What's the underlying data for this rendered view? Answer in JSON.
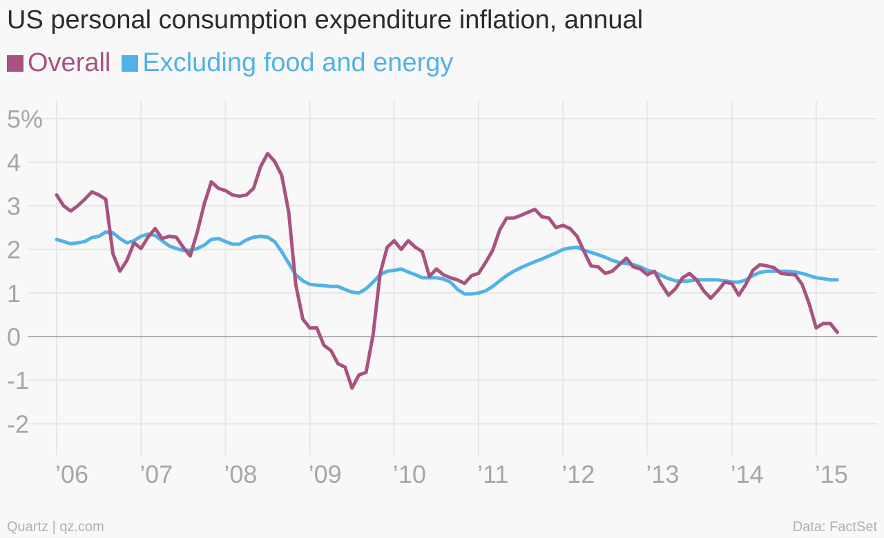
{
  "chart_data": {
    "type": "line",
    "title": "US personal consumption expenditure inflation, annual",
    "ylim": [
      -2.5,
      5.4
    ],
    "yticks": [
      {
        "value": 5,
        "label": "5%"
      },
      {
        "value": 4,
        "label": "4"
      },
      {
        "value": 3,
        "label": "3"
      },
      {
        "value": 2,
        "label": "2"
      },
      {
        "value": 1,
        "label": "1"
      },
      {
        "value": 0,
        "label": "0"
      },
      {
        "value": -1,
        "label": "-1"
      },
      {
        "value": -2,
        "label": "-2"
      }
    ],
    "xlim": [
      2005.8,
      2015.6
    ],
    "xticks": [
      {
        "value": 2006,
        "label": "’06"
      },
      {
        "value": 2007,
        "label": "’07"
      },
      {
        "value": 2008,
        "label": "’08"
      },
      {
        "value": 2009,
        "label": "’09"
      },
      {
        "value": 2010,
        "label": "’10"
      },
      {
        "value": 2011,
        "label": "’11"
      },
      {
        "value": 2012,
        "label": "’12"
      },
      {
        "value": 2013,
        "label": "’13"
      },
      {
        "value": 2014,
        "label": "’14"
      },
      {
        "value": 2015,
        "label": "’15"
      }
    ],
    "grid": true,
    "legend_position": "top-left",
    "series": [
      {
        "name": "Overall",
        "color": "#a8537f",
        "x": [
          2006.0,
          2006.083,
          2006.167,
          2006.25,
          2006.333,
          2006.417,
          2006.5,
          2006.583,
          2006.667,
          2006.75,
          2006.833,
          2006.917,
          2007.0,
          2007.083,
          2007.167,
          2007.25,
          2007.333,
          2007.417,
          2007.5,
          2007.583,
          2007.667,
          2007.75,
          2007.833,
          2007.917,
          2008.0,
          2008.083,
          2008.167,
          2008.25,
          2008.333,
          2008.417,
          2008.5,
          2008.583,
          2008.667,
          2008.75,
          2008.833,
          2008.917,
          2009.0,
          2009.083,
          2009.167,
          2009.25,
          2009.333,
          2009.417,
          2009.5,
          2009.583,
          2009.667,
          2009.75,
          2009.833,
          2009.917,
          2010.0,
          2010.083,
          2010.167,
          2010.25,
          2010.333,
          2010.417,
          2010.5,
          2010.583,
          2010.667,
          2010.75,
          2010.833,
          2010.917,
          2011.0,
          2011.083,
          2011.167,
          2011.25,
          2011.333,
          2011.417,
          2011.5,
          2011.583,
          2011.667,
          2011.75,
          2011.833,
          2011.917,
          2012.0,
          2012.083,
          2012.167,
          2012.25,
          2012.333,
          2012.417,
          2012.5,
          2012.583,
          2012.667,
          2012.75,
          2012.833,
          2012.917,
          2013.0,
          2013.083,
          2013.167,
          2013.25,
          2013.333,
          2013.417,
          2013.5,
          2013.583,
          2013.667,
          2013.75,
          2013.833,
          2013.917,
          2014.0,
          2014.083,
          2014.167,
          2014.25,
          2014.333,
          2014.417,
          2014.5,
          2014.583,
          2014.667,
          2014.75,
          2014.833,
          2014.917,
          2015.0,
          2015.083,
          2015.167,
          2015.25
        ],
        "values": [
          3.25,
          3.0,
          2.88,
          3.0,
          3.15,
          3.32,
          3.25,
          3.15,
          1.9,
          1.5,
          1.75,
          2.15,
          2.02,
          2.28,
          2.48,
          2.25,
          2.3,
          2.28,
          2.05,
          1.85,
          2.4,
          3.05,
          3.55,
          3.4,
          3.35,
          3.25,
          3.22,
          3.25,
          3.4,
          3.9,
          4.2,
          4.02,
          3.7,
          2.85,
          1.2,
          0.4,
          0.2,
          0.2,
          -0.2,
          -0.32,
          -0.62,
          -0.7,
          -1.18,
          -0.88,
          -0.82,
          0.05,
          1.45,
          2.05,
          2.2,
          2.0,
          2.2,
          2.05,
          1.95,
          1.38,
          1.55,
          1.42,
          1.35,
          1.3,
          1.22,
          1.4,
          1.45,
          1.7,
          1.98,
          2.45,
          2.72,
          2.72,
          2.78,
          2.85,
          2.92,
          2.75,
          2.72,
          2.5,
          2.55,
          2.48,
          2.3,
          1.95,
          1.62,
          1.6,
          1.45,
          1.5,
          1.65,
          1.8,
          1.6,
          1.55,
          1.42,
          1.5,
          1.2,
          0.95,
          1.1,
          1.35,
          1.45,
          1.3,
          1.05,
          0.88,
          1.05,
          1.25,
          1.22,
          0.95,
          1.2,
          1.52,
          1.65,
          1.62,
          1.58,
          1.45,
          1.43,
          1.42,
          1.2,
          0.75,
          0.2,
          0.3,
          0.3,
          0.1
        ]
      },
      {
        "name": "Excluding food and energy",
        "color": "#51b2e5",
        "x": [
          2006.0,
          2006.083,
          2006.167,
          2006.25,
          2006.333,
          2006.417,
          2006.5,
          2006.583,
          2006.667,
          2006.75,
          2006.833,
          2006.917,
          2007.0,
          2007.083,
          2007.167,
          2007.25,
          2007.333,
          2007.417,
          2007.5,
          2007.583,
          2007.667,
          2007.75,
          2007.833,
          2007.917,
          2008.0,
          2008.083,
          2008.167,
          2008.25,
          2008.333,
          2008.417,
          2008.5,
          2008.583,
          2008.667,
          2008.75,
          2008.833,
          2008.917,
          2009.0,
          2009.083,
          2009.167,
          2009.25,
          2009.333,
          2009.417,
          2009.5,
          2009.583,
          2009.667,
          2009.75,
          2009.833,
          2009.917,
          2010.0,
          2010.083,
          2010.167,
          2010.25,
          2010.333,
          2010.417,
          2010.5,
          2010.583,
          2010.667,
          2010.75,
          2010.833,
          2010.917,
          2011.0,
          2011.083,
          2011.167,
          2011.25,
          2011.333,
          2011.417,
          2011.5,
          2011.583,
          2011.667,
          2011.75,
          2011.833,
          2011.917,
          2012.0,
          2012.083,
          2012.167,
          2012.25,
          2012.333,
          2012.417,
          2012.5,
          2012.583,
          2012.667,
          2012.75,
          2012.833,
          2012.917,
          2013.0,
          2013.083,
          2013.167,
          2013.25,
          2013.333,
          2013.417,
          2013.5,
          2013.583,
          2013.667,
          2013.75,
          2013.833,
          2013.917,
          2014.0,
          2014.083,
          2014.167,
          2014.25,
          2014.333,
          2014.417,
          2014.5,
          2014.583,
          2014.667,
          2014.75,
          2014.833,
          2014.917,
          2015.0,
          2015.083,
          2015.167,
          2015.25
        ],
        "values": [
          2.23,
          2.18,
          2.13,
          2.15,
          2.18,
          2.27,
          2.3,
          2.4,
          2.38,
          2.25,
          2.15,
          2.2,
          2.3,
          2.35,
          2.32,
          2.2,
          2.08,
          2.02,
          1.98,
          1.98,
          2.02,
          2.1,
          2.23,
          2.25,
          2.18,
          2.12,
          2.12,
          2.22,
          2.28,
          2.3,
          2.28,
          2.18,
          1.95,
          1.68,
          1.42,
          1.28,
          1.2,
          1.18,
          1.17,
          1.15,
          1.15,
          1.08,
          1.02,
          1.0,
          1.1,
          1.25,
          1.42,
          1.5,
          1.52,
          1.55,
          1.48,
          1.42,
          1.35,
          1.35,
          1.35,
          1.32,
          1.25,
          1.08,
          0.98,
          0.98,
          1.0,
          1.05,
          1.15,
          1.28,
          1.4,
          1.5,
          1.58,
          1.65,
          1.72,
          1.78,
          1.85,
          1.92,
          2.0,
          2.03,
          2.05,
          1.98,
          1.93,
          1.88,
          1.82,
          1.75,
          1.7,
          1.68,
          1.65,
          1.6,
          1.52,
          1.48,
          1.4,
          1.33,
          1.28,
          1.27,
          1.28,
          1.3,
          1.3,
          1.3,
          1.3,
          1.28,
          1.25,
          1.25,
          1.3,
          1.4,
          1.47,
          1.5,
          1.5,
          1.5,
          1.5,
          1.48,
          1.45,
          1.4,
          1.35,
          1.33,
          1.3,
          1.3
        ]
      }
    ]
  },
  "footer": {
    "source_left": "Quartz | qz.com",
    "source_right": "Data: FactSet"
  }
}
